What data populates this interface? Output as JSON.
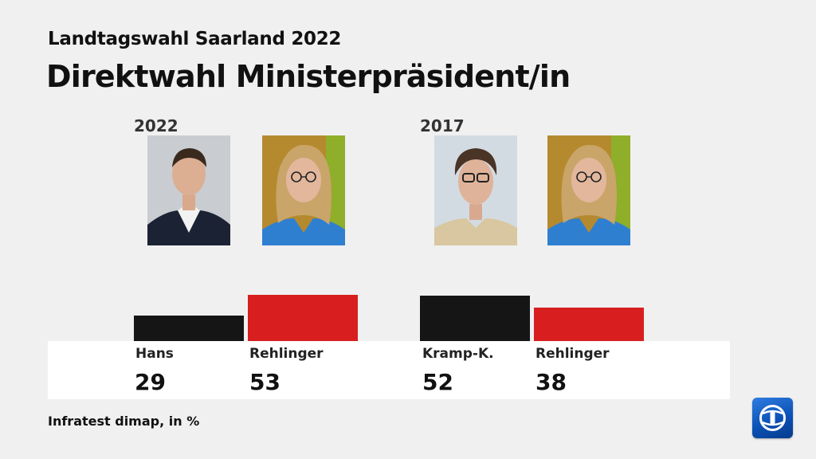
{
  "header": {
    "subtitle": "Landtagswahl Saarland 2022",
    "title": "Direktwahl Ministerpräsident/in"
  },
  "footer": {
    "source": "Infratest dimap, in %"
  },
  "logo": {
    "icon": "tagesschau-logo-icon"
  },
  "colors": {
    "hans": "#151515",
    "rehlinger": "#d81e1e",
    "kramp": "#151515",
    "background": "#f0f0f0"
  },
  "chart_data": {
    "type": "bar",
    "groups": [
      "2022",
      "2017"
    ],
    "unit": "%",
    "ylim": [
      0,
      60
    ],
    "series": [
      {
        "group": "2022",
        "candidates": [
          {
            "name": "Hans",
            "value": 29,
            "value_label": "29",
            "color": "#151515"
          },
          {
            "name": "Rehlinger",
            "value": 53,
            "value_label": "53",
            "color": "#d81e1e"
          }
        ]
      },
      {
        "group": "2017",
        "candidates": [
          {
            "name": "Kramp-K.",
            "value": 52,
            "value_label": "52",
            "color": "#151515"
          },
          {
            "name": "Rehlinger",
            "value": 38,
            "value_label": "38",
            "color": "#d81e1e"
          }
        ]
      }
    ]
  }
}
